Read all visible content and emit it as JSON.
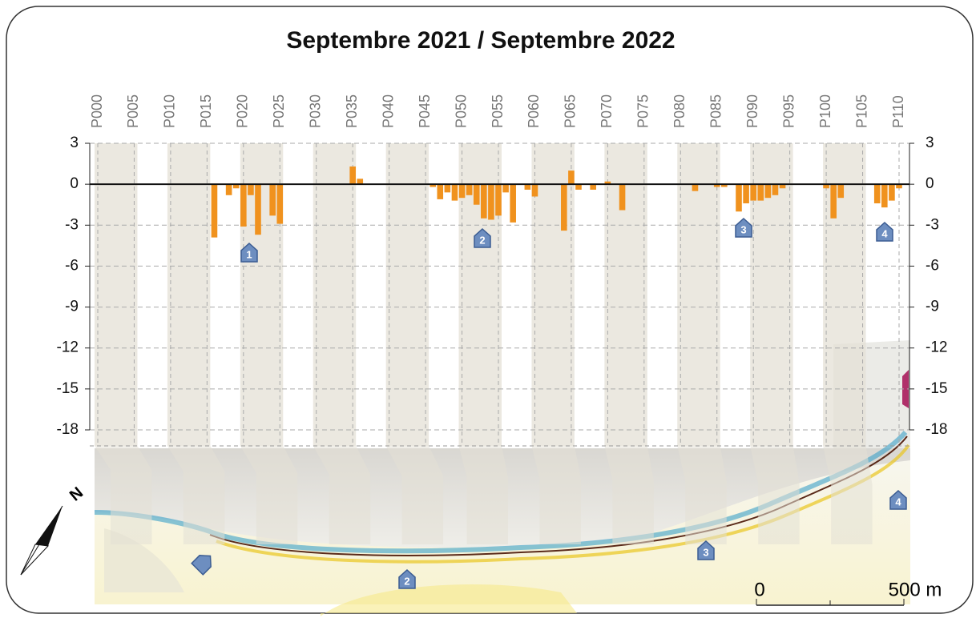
{
  "chart_data": {
    "type": "bar",
    "title": "Septembre 2021 / Septembre 2022",
    "categories": [
      "P000",
      null,
      null,
      null,
      null,
      "P005",
      null,
      null,
      null,
      null,
      "P010",
      null,
      null,
      null,
      null,
      "P015",
      null,
      null,
      null,
      null,
      "P020",
      null,
      null,
      null,
      null,
      "P025",
      null,
      null,
      null,
      null,
      "P030",
      null,
      null,
      null,
      null,
      "P035",
      null,
      null,
      null,
      null,
      "P040",
      null,
      null,
      null,
      null,
      "P045",
      null,
      null,
      null,
      null,
      "P050",
      null,
      null,
      null,
      null,
      "P055",
      null,
      null,
      null,
      null,
      "P060",
      null,
      null,
      null,
      null,
      "P065",
      null,
      null,
      null,
      null,
      "P070",
      null,
      null,
      null,
      null,
      "P075",
      null,
      null,
      null,
      null,
      "P080",
      null,
      null,
      null,
      null,
      "P085",
      null,
      null,
      null,
      null,
      "P090",
      null,
      null,
      null,
      null,
      "P095",
      null,
      null,
      null,
      null,
      "P100",
      null,
      null,
      null,
      null,
      "P105",
      null,
      null,
      null,
      null,
      "P110"
    ],
    "values": [
      null,
      null,
      null,
      null,
      null,
      null,
      null,
      null,
      null,
      null,
      null,
      null,
      null,
      null,
      null,
      null,
      -3.9,
      null,
      -0.8,
      -0.3,
      -3.1,
      -0.8,
      -3.7,
      null,
      -2.3,
      -2.9,
      null,
      null,
      null,
      null,
      null,
      null,
      null,
      null,
      null,
      1.3,
      0.4,
      null,
      null,
      null,
      null,
      null,
      null,
      null,
      null,
      null,
      -0.2,
      -1.1,
      -0.6,
      -1.2,
      -1.0,
      -0.8,
      -1.5,
      -2.5,
      -2.6,
      -2.3,
      -0.6,
      -2.8,
      null,
      -0.4,
      -0.9,
      null,
      null,
      null,
      -3.4,
      1.0,
      -0.4,
      null,
      -0.4,
      null,
      0.2,
      null,
      -1.9,
      null,
      null,
      null,
      null,
      null,
      null,
      null,
      null,
      null,
      -0.5,
      null,
      null,
      -0.2,
      -0.2,
      null,
      -2.0,
      -1.4,
      -1.2,
      -1.2,
      -1.0,
      -0.8,
      -0.3,
      null,
      null,
      null,
      null,
      null,
      -0.3,
      -2.5,
      -1.0,
      null,
      null,
      null,
      null,
      -1.4,
      -1.7,
      -1.2,
      -0.3
    ],
    "color": "#f0921e",
    "ylim": [
      -18,
      3
    ],
    "yticks": [
      3,
      0,
      -3,
      -6,
      -9,
      -12,
      -15,
      -18
    ],
    "grid": true,
    "annotations": [
      "1",
      "2",
      "3",
      "4"
    ],
    "map_annotations": [
      "2",
      "3",
      "4"
    ],
    "scale_bar": [
      "0",
      "500 m"
    ],
    "north_label": "N"
  }
}
